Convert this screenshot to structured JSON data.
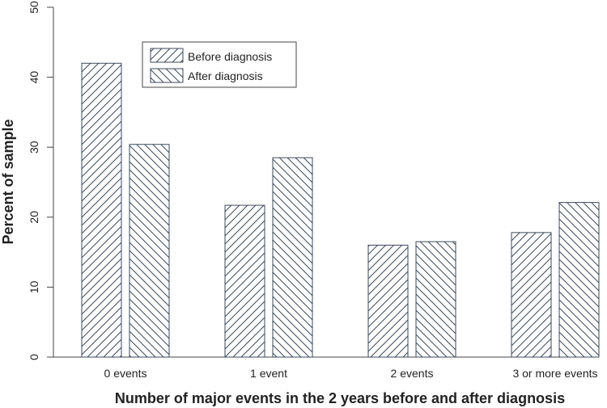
{
  "chart_data": {
    "type": "bar",
    "categories": [
      "0 events",
      "1 event",
      "2 events",
      "3 or more events"
    ],
    "series": [
      {
        "name": "Before diagnosis",
        "values": [
          42.0,
          21.7,
          16.0,
          17.8
        ],
        "hatch": "forward"
      },
      {
        "name": "After diagnosis",
        "values": [
          30.4,
          28.5,
          16.5,
          22.1
        ],
        "hatch": "backward"
      }
    ],
    "title": "",
    "xlabel": "Number of major events in the 2 years before and after diagnosis",
    "ylabel": "Percent of sample",
    "ylim": [
      0,
      50
    ],
    "yticks": [
      0,
      10,
      20,
      30,
      40,
      50
    ],
    "grid": false,
    "legend_position": "top-left",
    "colors": {
      "bar_stroke": "#3d4a5c",
      "bar_fill": "#ffffff",
      "axis": "#444444"
    }
  }
}
